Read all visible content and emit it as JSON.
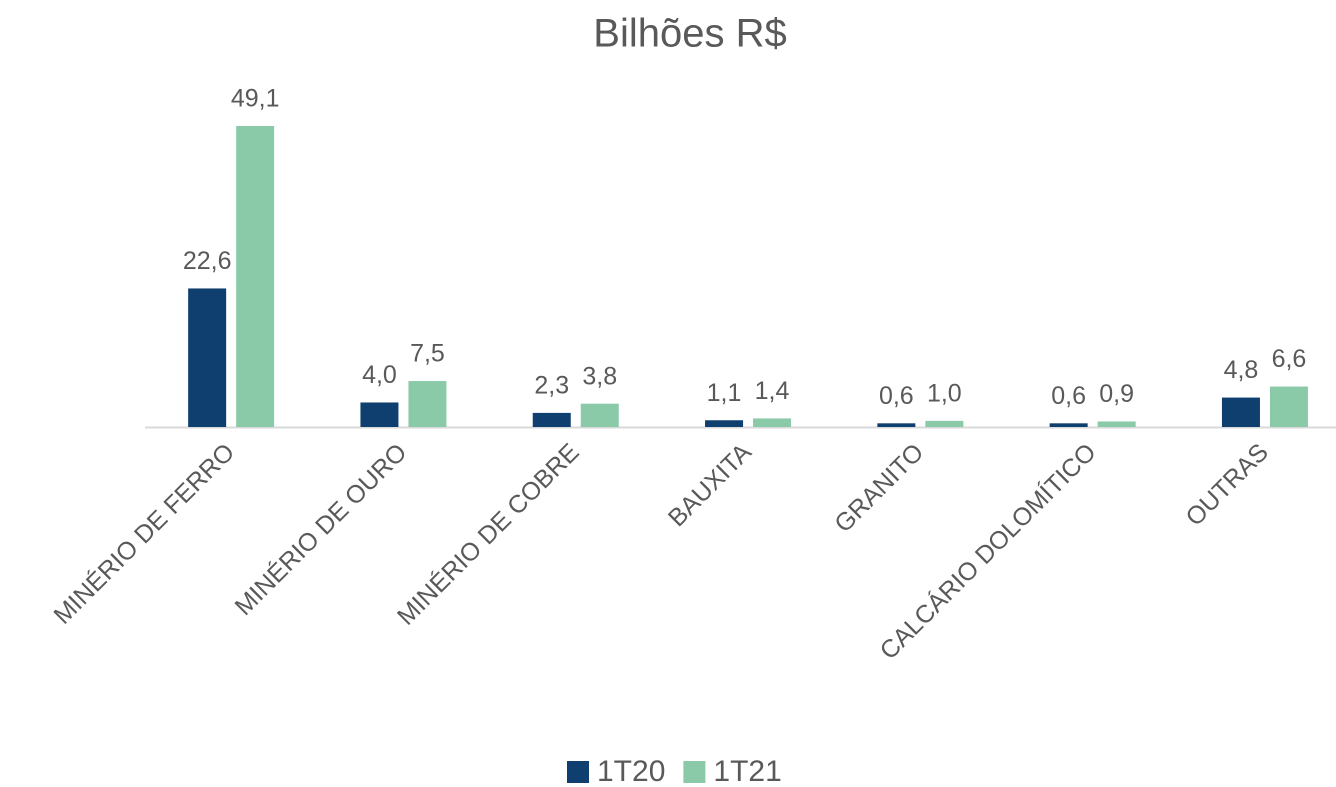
{
  "chart_data": {
    "type": "bar",
    "title": "Bilhões R$",
    "categories": [
      "MINÉRIO DE FERRO",
      "MINÉRIO DE OURO",
      "MINÉRIO DE COBRE",
      "BAUXITA",
      "GRANITO",
      "CALCÁRIO DOLOMÍTICO",
      "OUTRAS"
    ],
    "series": [
      {
        "name": "1T20",
        "color": "#0e3f6e",
        "values": [
          22.6,
          4.0,
          2.3,
          1.1,
          0.6,
          0.6,
          4.8
        ],
        "value_labels": [
          "22,6",
          "4,0",
          "2,3",
          "1,1",
          "0,6",
          "0,6",
          "4,8"
        ]
      },
      {
        "name": "1T21",
        "color": "#8bcaa8",
        "values": [
          49.1,
          7.5,
          3.8,
          1.4,
          1.0,
          0.9,
          6.6
        ],
        "value_labels": [
          "49,1",
          "7,5",
          "3,8",
          "1,4",
          "1,0",
          "0,9",
          "6,6"
        ]
      }
    ],
    "legend": "bottom"
  }
}
